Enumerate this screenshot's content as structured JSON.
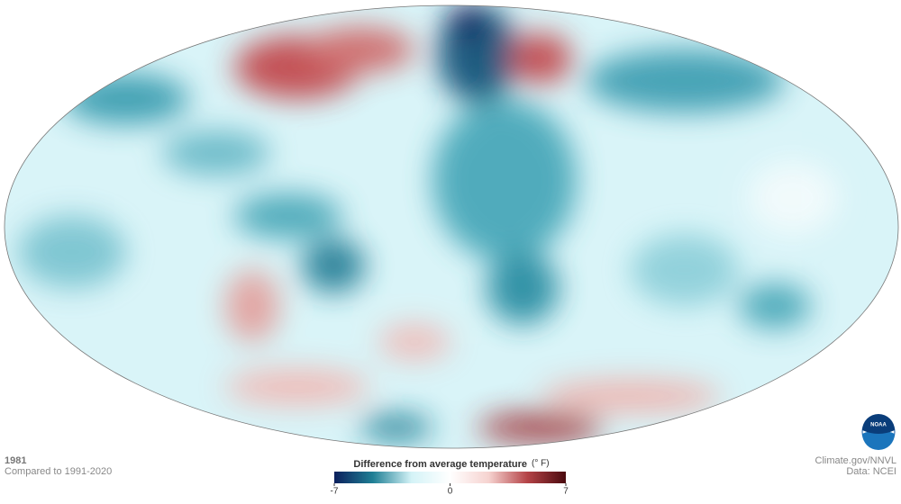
{
  "header": {
    "year": "1981",
    "comparison": "Compared to 1991-2020"
  },
  "legend": {
    "title": "Difference from average temperature",
    "unit": "(° F)",
    "ticks": [
      -7,
      0,
      7
    ],
    "colors": [
      "#0b1f5c",
      "#1f7f95",
      "#d4f3f7",
      "#ffffff",
      "#f6d3d0",
      "#b54347",
      "#4a0a0e"
    ]
  },
  "credits": {
    "source": "Climate.gov/NNVL",
    "data": "Data: NCEI"
  },
  "logo": "NOAA"
}
